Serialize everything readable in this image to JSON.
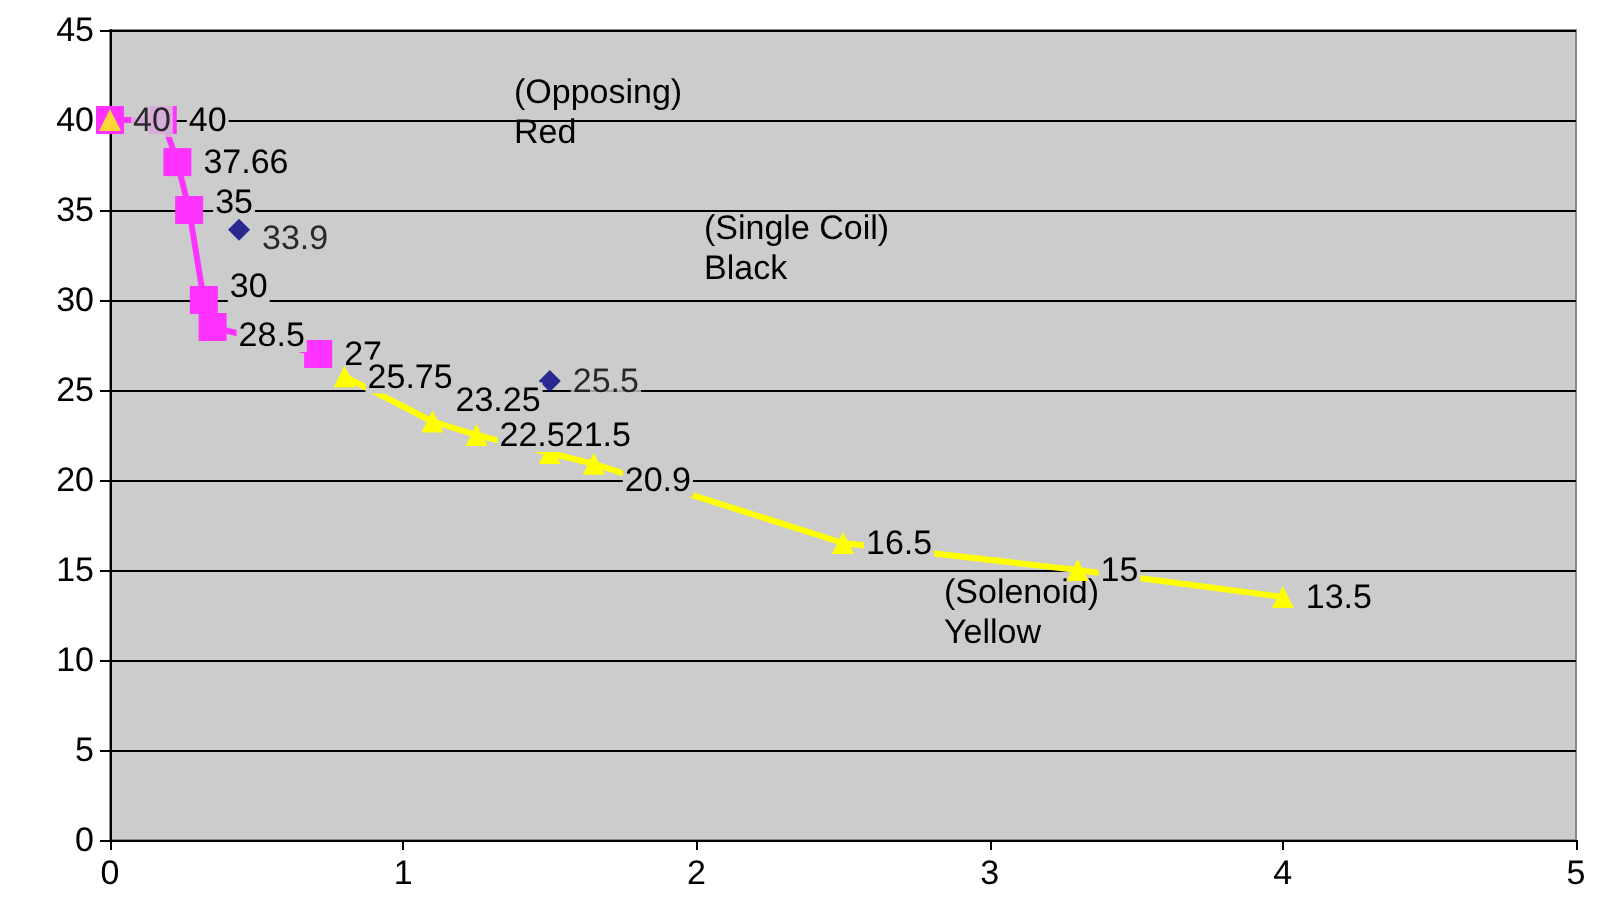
{
  "chart_data": {
    "type": "line",
    "xlim": [
      0,
      5
    ],
    "xticks": [
      0,
      1,
      2,
      3,
      4,
      5
    ],
    "ylim": [
      0,
      45
    ],
    "yticks": [
      0,
      5,
      10,
      15,
      20,
      25,
      30,
      35,
      40,
      45
    ],
    "grid": "y",
    "annotations": [
      "(Opposing)\nRed",
      "(Single Coil)\nBlack",
      "(Solenoid)\nYellow"
    ],
    "series": [
      {
        "color": "#ff33ff",
        "marker": "square",
        "x": [
          0,
          0.18,
          0.23,
          0.27,
          0.32,
          0.35,
          0.71
        ],
        "values": [
          40,
          40,
          37.66,
          35,
          30,
          28.5,
          27
        ],
        "value_labels": [
          null,
          "40",
          "37.66",
          "35",
          "30",
          "28.5",
          "27"
        ]
      },
      {
        "color": "#000080",
        "marker": "diamond",
        "type": "scatter",
        "x": [
          0.44,
          1.5
        ],
        "values": [
          33.9,
          25.5
        ],
        "value_labels": [
          "33.9",
          "25.5"
        ]
      },
      {
        "color": "#ffff00",
        "marker": "triangle",
        "type": "scatter",
        "x": [
          0
        ],
        "values": [
          40
        ],
        "value_labels": [
          "40"
        ]
      },
      {
        "color": "#ffff00",
        "marker": "triangle",
        "x": [
          0.8,
          1.1,
          1.25,
          1.5,
          1.65,
          2.5,
          3.3,
          4
        ],
        "values": [
          25.75,
          23.25,
          22.5,
          21.5,
          20.9,
          16.5,
          15,
          13.5
        ],
        "value_labels": [
          "25.75",
          "23.25",
          "22.5",
          "21.5",
          "20.9",
          "16.5",
          "15",
          "13.5"
        ]
      }
    ]
  }
}
